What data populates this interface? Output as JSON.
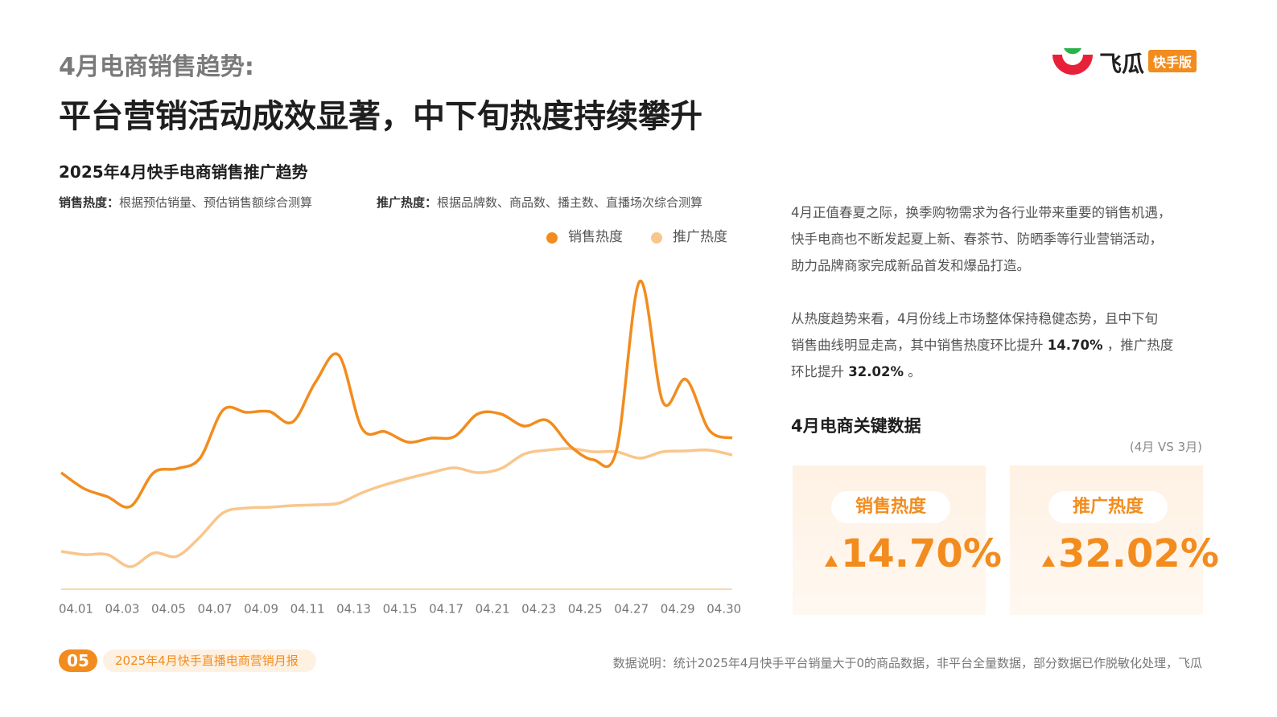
{
  "header": {
    "section": "4月电商销售趋势:",
    "title": "平台营销活动成效显著，中下旬热度持续攀升"
  },
  "logo": {
    "name": "飞瓜",
    "badge": "快手版"
  },
  "chart_data": {
    "type": "line",
    "title": "2025年4月快手电商销售推广趋势",
    "notes": [
      {
        "label": "销售热度：",
        "text": "根据预估销量、预估销售额综合测算"
      },
      {
        "label": "推广热度：",
        "text": "根据品牌数、商品数、播主数、直播场次综合测算"
      }
    ],
    "categories": [
      "04.01",
      null,
      "04.03",
      null,
      "04.05",
      null,
      "04.07",
      null,
      "04.09",
      null,
      "04.11",
      null,
      "04.13",
      null,
      "04.15",
      null,
      "04.17",
      null,
      "04.21",
      null,
      "04.23",
      null,
      "04.25",
      null,
      "04.27",
      null,
      "04.29",
      null,
      "04.30",
      null
    ],
    "series": [
      {
        "name": "销售热度",
        "color": "#F28C1E",
        "values": [
          145,
          125,
          115,
          103,
          145,
          150,
          163,
          223,
          220,
          221,
          208,
          258,
          291,
          200,
          196,
          183,
          188,
          190,
          218,
          218,
          203,
          210,
          178,
          161,
          173,
          383,
          233,
          261,
          198,
          188
        ]
      },
      {
        "name": "推广热度",
        "color": "#F9C68C",
        "values": [
          47,
          43,
          43,
          28,
          45,
          41,
          65,
          95,
          101,
          102,
          104,
          105,
          107,
          120,
          130,
          138,
          145,
          151,
          145,
          150,
          168,
          173,
          175,
          171,
          171,
          163,
          171,
          172,
          173,
          167
        ]
      }
    ],
    "ylim": [
      0,
      400
    ]
  },
  "commentary": {
    "lines": [
      [
        "4月正值春夏之际，换季购物需求为各行业带来重要的销售机遇，"
      ],
      [
        "快手电商也不断发起夏上新、春茶节、防晒季等行业营销活动，"
      ],
      [
        "助力品牌商家完成新品首发和爆品打造。"
      ],
      [],
      [
        "从热度趋势来看，4月份线上市场整体保持稳健态势，且中下旬"
      ],
      [
        "销售曲线明显走高，其中销售热度环比提升 ",
        {
          "text": "14.70%",
          "bold": true
        },
        " ，推广热度"
      ],
      [
        "环比提升 ",
        {
          "text": "32.02%",
          "bold": true
        },
        " 。"
      ]
    ]
  },
  "key_data": {
    "title": "4月电商关键数据",
    "note": "(4月 VS 3月)",
    "cards": [
      {
        "label": "销售热度",
        "value": "14.70%"
      },
      {
        "label": "推广热度",
        "value": "32.02%"
      }
    ]
  },
  "footer": {
    "page": "05",
    "report": "2025年4月快手直播电商营销月报",
    "source": "数据说明：统计2025年4月快手平台销量大于0的商品数据，非平台全量数据，部分数据已作脱敏化处理，飞瓜"
  }
}
